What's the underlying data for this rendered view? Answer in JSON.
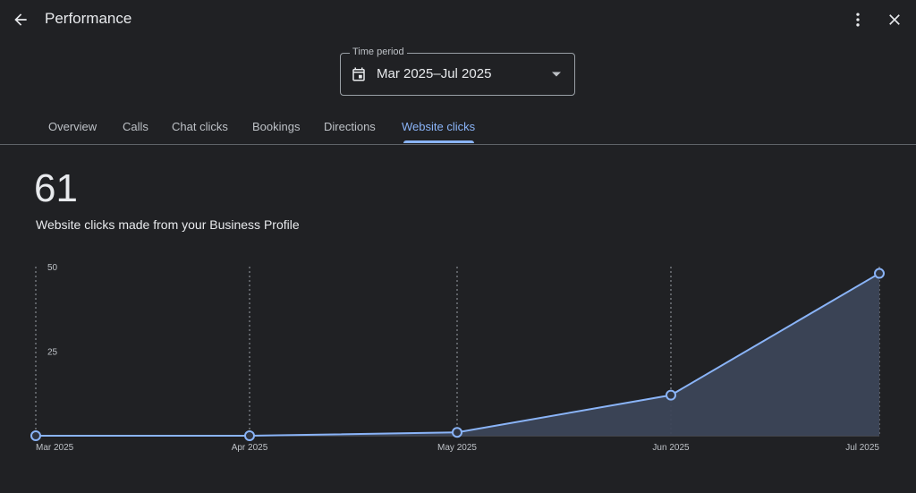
{
  "header": {
    "title": "Performance",
    "back_icon": "arrow-back-icon",
    "more_icon": "more-vert-icon",
    "close_icon": "close-icon"
  },
  "time_period": {
    "label": "Time period",
    "value": "Mar 2025–Jul 2025",
    "icon": "calendar-icon"
  },
  "tabs": [
    {
      "label": "Overview"
    },
    {
      "label": "Calls"
    },
    {
      "label": "Chat clicks"
    },
    {
      "label": "Bookings"
    },
    {
      "label": "Directions"
    },
    {
      "label": "Website clicks",
      "active": true
    }
  ],
  "metric": {
    "value": "61",
    "description": "Website clicks made from your Business Profile"
  },
  "colors": {
    "background": "#202124",
    "accent": "#8ab4f8",
    "area_fill": "#3c4658"
  },
  "chart_data": {
    "type": "area",
    "categories": [
      "Mar 2025",
      "Apr 2025",
      "May 2025",
      "Jun 2025",
      "Jul 2025"
    ],
    "values": [
      0,
      0,
      1,
      12,
      48
    ],
    "y_ticks": [
      "25",
      "50"
    ],
    "ylim": [
      0,
      50
    ],
    "grid": "vertical-dashed"
  }
}
